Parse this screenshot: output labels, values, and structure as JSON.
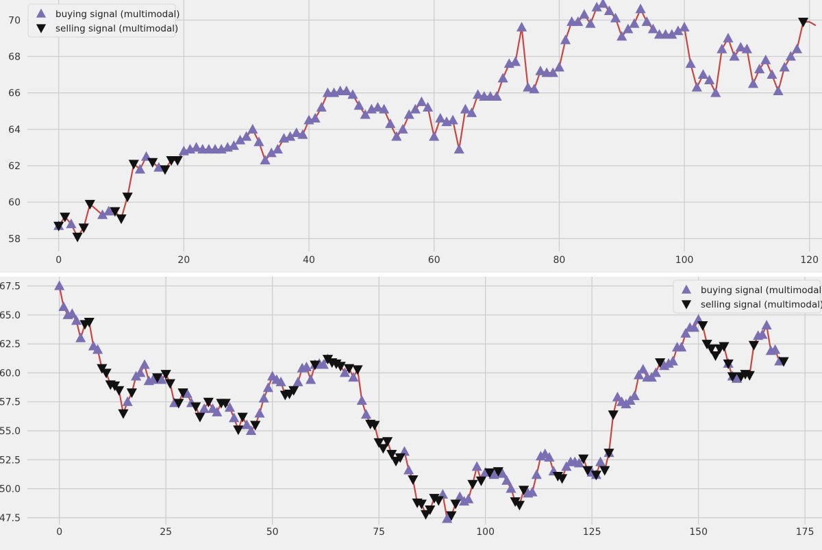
{
  "colors": {
    "background": "#f0f0f0",
    "grid": "#cbcbcb",
    "line": "#c9453f",
    "buy": "#7b6fb3",
    "sell": "#111111",
    "text": "#333333"
  },
  "chart_data": [
    {
      "type": "line",
      "title": "",
      "xlabel": "",
      "ylabel": "",
      "xlim": [
        -5,
        122
      ],
      "ylim": [
        57.3,
        71.1
      ],
      "xticks": [
        0,
        20,
        40,
        60,
        80,
        100,
        120
      ],
      "yticks": [
        58,
        60,
        62,
        64,
        66,
        68,
        70
      ],
      "grid": true,
      "legend": {
        "position": "upper-left",
        "entries": [
          "buying signal (multimodal)",
          "selling signal (multimodal)"
        ]
      },
      "series": [
        {
          "name": "",
          "values": [
            58.7,
            59.2,
            58.8,
            58.1,
            58.6,
            59.9,
            59.6,
            59.3,
            59.5,
            59.5,
            59.1,
            60.3,
            62.1,
            61.8,
            62.5,
            62.2,
            61.9,
            61.8,
            62.3,
            62.3,
            62.8,
            62.9,
            63.0,
            62.9,
            62.9,
            62.9,
            62.9,
            63.0,
            63.1,
            63.4,
            63.6,
            64.0,
            63.3,
            62.3,
            62.7,
            62.9,
            63.5,
            63.6,
            63.8,
            63.7,
            64.5,
            64.6,
            65.2,
            66.0,
            66.0,
            66.1,
            66.1,
            65.9,
            65.3,
            64.8,
            65.1,
            65.2,
            65.1,
            64.3,
            63.6,
            64.0,
            64.8,
            65.1,
            65.5,
            65.2,
            63.6,
            64.6,
            64.4,
            64.5,
            62.9,
            65.1,
            64.9,
            65.9,
            65.8,
            65.8,
            65.8,
            66.8,
            67.6,
            67.7,
            69.6,
            66.3,
            66.2,
            67.2,
            67.1,
            67.1,
            67.4,
            68.9,
            69.9,
            69.9,
            70.3,
            69.8,
            70.7,
            70.9,
            70.5,
            70.1,
            69.1,
            69.5,
            69.8,
            70.6,
            69.9,
            69.5,
            69.2,
            69.2,
            69.2,
            69.4,
            69.6,
            67.6,
            66.3,
            67.0,
            66.7,
            66.0,
            68.4,
            69.0,
            68.0,
            68.5,
            68.4,
            66.5,
            67.3,
            67.8,
            67.0,
            66.1,
            67.4,
            68.0,
            68.4,
            69.9,
            69.9,
            69.7
          ]
        }
      ],
      "signals": {
        "buy_x": [
          0,
          2,
          7,
          8,
          13,
          14,
          16,
          20,
          21,
          22,
          23,
          24,
          25,
          26,
          27,
          28,
          29,
          30,
          31,
          32,
          33,
          34,
          35,
          36,
          37,
          38,
          39,
          40,
          41,
          42,
          43,
          44,
          45,
          46,
          47,
          48,
          49,
          50,
          51,
          52,
          53,
          54,
          55,
          56,
          57,
          58,
          59,
          60,
          61,
          62,
          63,
          64,
          65,
          66,
          67,
          68,
          69,
          70,
          71,
          72,
          73,
          74,
          75,
          76,
          77,
          78,
          79,
          80,
          81,
          82,
          83,
          84,
          85,
          86,
          87,
          88,
          89,
          90,
          91,
          92,
          93,
          94,
          95,
          96,
          97,
          98,
          99,
          100,
          101,
          102,
          103,
          104,
          105,
          106,
          107,
          108,
          109,
          110,
          111,
          112,
          113,
          114,
          115,
          116,
          117,
          118
        ],
        "sell_x": [
          0,
          1,
          3,
          4,
          5,
          9,
          10,
          11,
          12,
          15,
          17,
          18,
          19,
          119
        ]
      }
    },
    {
      "type": "line",
      "title": "",
      "xlabel": "",
      "ylabel": "",
      "xlim": [
        -7.5,
        179
      ],
      "ylim": [
        46.9,
        68.3
      ],
      "xticks": [
        0,
        25,
        50,
        75,
        100,
        125,
        150,
        175
      ],
      "yticks": [
        47.5,
        50.0,
        52.5,
        55.0,
        57.5,
        60.0,
        62.5,
        65.0,
        67.5
      ],
      "grid": true,
      "legend": {
        "position": "upper-right",
        "entries": [
          "buying signal (multimodal)",
          "selling signal (multimodal)"
        ]
      },
      "series": [
        {
          "name": "",
          "values": [
            67.5,
            65.7,
            65.0,
            65.1,
            64.5,
            63.0,
            64.2,
            64.4,
            62.3,
            62.0,
            60.4,
            60.0,
            59.0,
            58.9,
            58.5,
            56.5,
            57.5,
            58.3,
            59.7,
            60.0,
            60.7,
            59.3,
            59.4,
            59.6,
            59.4,
            59.9,
            59.1,
            57.4,
            57.4,
            58.3,
            58.2,
            57.4,
            57.1,
            56.2,
            56.9,
            57.5,
            56.9,
            56.6,
            57.4,
            57.4,
            57.0,
            56.1,
            55.1,
            56.2,
            55.5,
            55.0,
            55.5,
            56.5,
            57.8,
            58.7,
            59.7,
            59.4,
            59.2,
            58.1,
            58.2,
            58.5,
            59.2,
            60.4,
            60.5,
            59.4,
            60.7,
            60.8,
            60.7,
            61.2,
            60.9,
            60.8,
            60.6,
            60.0,
            60.4,
            59.6,
            60.3,
            57.6,
            56.4,
            55.6,
            55.5,
            54.0,
            53.5,
            54.1,
            53.0,
            52.4,
            52.7,
            53.2,
            51.6,
            50.8,
            48.8,
            48.7,
            47.8,
            48.2,
            49.2,
            49.0,
            49.5,
            47.4,
            47.7,
            48.7,
            49.3,
            48.9,
            49.1,
            50.4,
            51.9,
            50.7,
            51.4,
            51.4,
            51.2,
            51.5,
            51.3,
            50.7,
            50.0,
            48.9,
            48.6,
            49.9,
            49.6,
            49.7,
            51.2,
            52.8,
            53.0,
            52.7,
            51.5,
            51.1,
            50.9,
            51.9,
            52.3,
            52.3,
            52.2,
            52.6,
            51.6,
            51.4,
            51.2,
            52.3,
            51.6,
            53.1,
            56.4,
            57.9,
            57.5,
            57.3,
            57.6,
            58.0,
            59.8,
            60.3,
            59.6,
            59.6,
            60.0,
            60.9,
            60.6,
            60.8,
            61.0,
            62.2,
            62.2,
            63.4,
            63.9,
            63.9,
            64.6,
            64.1,
            62.5,
            62.1,
            61.5,
            62.1,
            62.3,
            60.8,
            59.7,
            59.5,
            59.7,
            59.9,
            59.8,
            62.4,
            63.2,
            63.3,
            64.1,
            61.9,
            62.0,
            61.0,
            61.0
          ]
        }
      ],
      "signals": {
        "buy_x": [
          0,
          1,
          2,
          3,
          4,
          5,
          8,
          9,
          16,
          18,
          19,
          20,
          21,
          22,
          24,
          27,
          30,
          31,
          34,
          36,
          37,
          40,
          41,
          44,
          45,
          47,
          48,
          49,
          50,
          51,
          52,
          56,
          57,
          58,
          59,
          60,
          61,
          62,
          63,
          67,
          69,
          71,
          72,
          81,
          82,
          90,
          91,
          94,
          95,
          96,
          98,
          100,
          102,
          104,
          105,
          106,
          110,
          111,
          112,
          113,
          114,
          115,
          116,
          119,
          120,
          121,
          122,
          125,
          126,
          127,
          129,
          131,
          132,
          133,
          134,
          135,
          136,
          137,
          138,
          139,
          140,
          142,
          143,
          144,
          145,
          146,
          147,
          148,
          149,
          150,
          157,
          158,
          159,
          164,
          165,
          166,
          167,
          168,
          169
        ],
        "sell_x": [
          6,
          7,
          10,
          11,
          12,
          13,
          14,
          15,
          17,
          23,
          25,
          26,
          28,
          29,
          32,
          33,
          35,
          38,
          39,
          42,
          43,
          46,
          53,
          54,
          55,
          60,
          63,
          64,
          65,
          66,
          68,
          70,
          73,
          74,
          75,
          76,
          77,
          78,
          79,
          80,
          83,
          84,
          85,
          86,
          87,
          88,
          89,
          92,
          93,
          97,
          99,
          101,
          103,
          107,
          108,
          109,
          117,
          118,
          123,
          124,
          126,
          128,
          129,
          130,
          141,
          151,
          152,
          153,
          154,
          155,
          156,
          157,
          158,
          160,
          161,
          162,
          163,
          170
        ]
      }
    }
  ]
}
